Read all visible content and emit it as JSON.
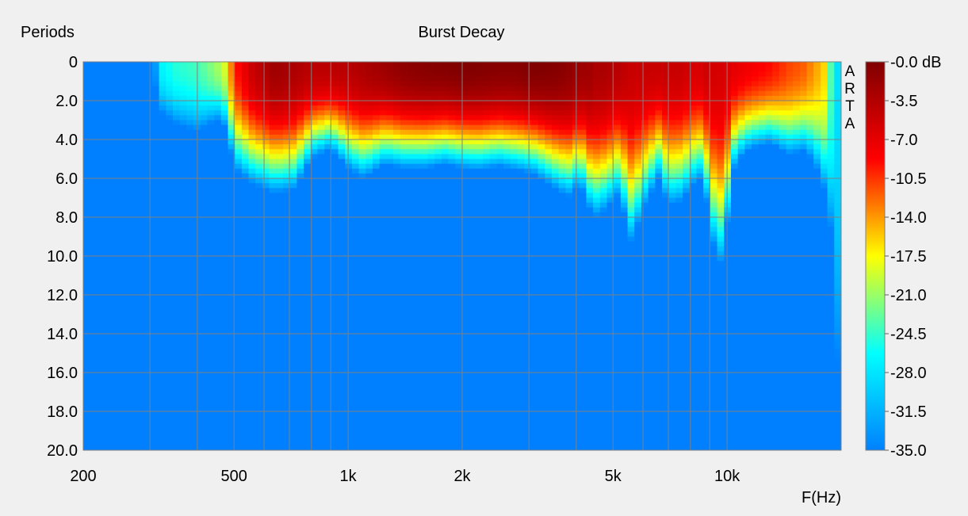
{
  "chart_data": {
    "type": "heatmap",
    "title": "Burst Decay",
    "ylabel": "Periods",
    "xlabel": "F(Hz)",
    "watermark": "ARTA",
    "x_scale": "log",
    "xlim": [
      200,
      20000
    ],
    "ylim": [
      0,
      20
    ],
    "y_inverted": true,
    "x_ticks": [
      200,
      500,
      1000,
      2000,
      5000,
      10000
    ],
    "x_tick_labels": [
      "200",
      "500",
      "1k",
      "2k",
      "5k",
      "10k"
    ],
    "y_tick_labels": [
      "0",
      "2.0",
      "4.0",
      "6.0",
      "8.0",
      "10.0",
      "12.0",
      "14.0",
      "16.0",
      "18.0",
      "20.0"
    ],
    "colorbar": {
      "unit": "dB",
      "range": [
        -35,
        0
      ],
      "tick_labels": [
        "-0.0 dB",
        "-3.5",
        "-7.0",
        "-10.5",
        "-14.0",
        "-17.5",
        "-21.0",
        "-24.5",
        "-28.0",
        "-31.5",
        "-35.0"
      ],
      "colors": [
        "#800000",
        "#ff0000",
        "#ffff00",
        "#00ffff",
        "#0080ff"
      ]
    },
    "decay_profile": {
      "description": "approximate periods until level falls to -35 dB, and peak level at period 0",
      "freq_hz": [
        200,
        280,
        300,
        320,
        350,
        400,
        450,
        480,
        500,
        560,
        640,
        720,
        800,
        900,
        1000,
        1100,
        1250,
        1400,
        1600,
        1800,
        2000,
        2200,
        2500,
        2800,
        3100,
        3500,
        3800,
        4100,
        4300,
        4500,
        4800,
        5200,
        5600,
        6000,
        6600,
        7000,
        7600,
        8000,
        8600,
        9000,
        9300,
        9700,
        10500,
        11500,
        13000,
        14500,
        16000,
        17000,
        18000,
        18500,
        19000,
        20000
      ],
      "decay_periods": [
        0,
        0,
        0,
        2.6,
        3.2,
        3.6,
        3.0,
        3.5,
        5.5,
        6.3,
        6.8,
        6.6,
        5.0,
        4.5,
        5.5,
        6.0,
        5.3,
        5.5,
        5.5,
        5.3,
        5.5,
        5.6,
        5.4,
        5.6,
        5.8,
        6.5,
        7.0,
        6.3,
        7.5,
        8.0,
        7.6,
        6.8,
        9.4,
        7.6,
        6.0,
        7.4,
        7.2,
        6.5,
        6.0,
        8.0,
        10.0,
        10.5,
        5.2,
        4.5,
        4.2,
        4.8,
        4.6,
        5.2,
        6.5,
        8.4,
        8.8,
        20.0
      ],
      "peak_db": [
        -40,
        -40,
        -40,
        -27,
        -25,
        -24,
        -21,
        -18,
        -10,
        -5,
        -2,
        -3,
        -4,
        -4,
        -4,
        -3,
        -2,
        -1,
        -0.5,
        -0.3,
        0,
        -0.2,
        -0.5,
        -0.5,
        0,
        -0.3,
        -1,
        -2,
        -2,
        -3,
        -3,
        -4,
        -5,
        -5,
        -5,
        -5,
        -5,
        -6,
        -6,
        -5,
        -6,
        -6,
        -7,
        -8,
        -9,
        -11,
        -12,
        -14,
        -16,
        -20,
        -26,
        -30
      ]
    }
  }
}
